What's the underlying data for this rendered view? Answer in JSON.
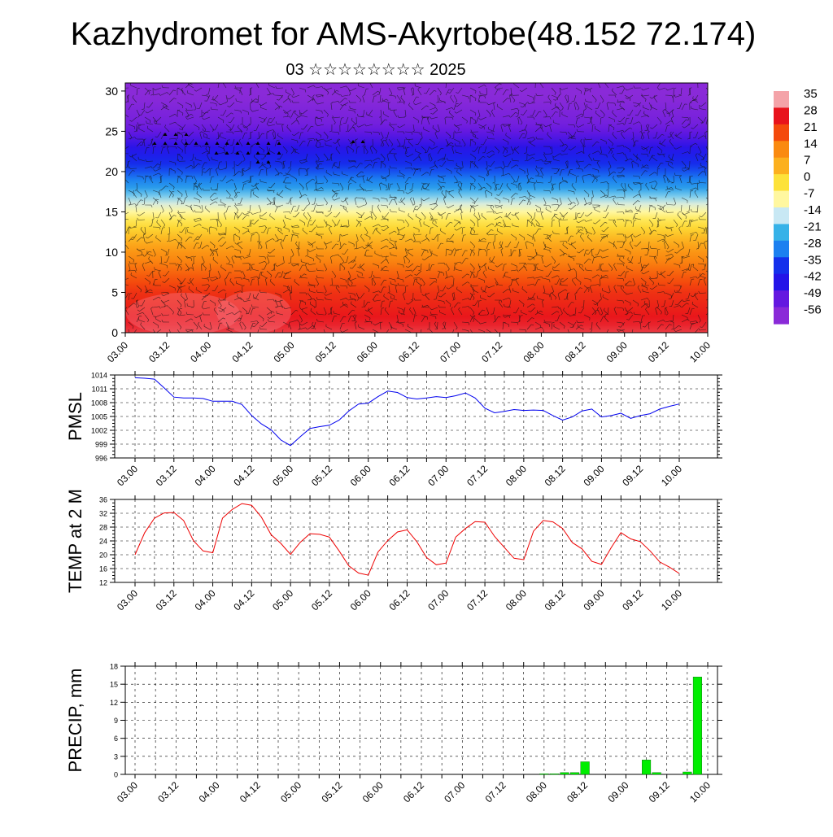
{
  "title": "Kazhydromet for AMS-Akyrtobe(48.152 72.174)",
  "subtitle": "03 ☆☆☆☆☆☆☆☆ 2025",
  "time_ticks": [
    "03.00",
    "03.12",
    "04.00",
    "04.12",
    "05.00",
    "05.12",
    "06.00",
    "06.12",
    "07.00",
    "07.12",
    "08.00",
    "08.12",
    "09.00",
    "09.12",
    "10.00"
  ],
  "chart_data": [
    {
      "type": "heatmap",
      "name": "vertical temperature cross-section with wind barbs",
      "x_ticks": [
        "03.00",
        "03.12",
        "04.00",
        "04.12",
        "05.00",
        "05.12",
        "06.00",
        "06.12",
        "07.00",
        "07.12",
        "08.00",
        "08.12",
        "09.00",
        "09.12",
        "10.00"
      ],
      "y_ticks": [
        0,
        5,
        10,
        15,
        20,
        25,
        30
      ],
      "ylim": [
        0,
        31
      ],
      "colorbar_labels": [
        "35",
        "28",
        "21",
        "14",
        "7",
        "0",
        "-7",
        "-14",
        "-21",
        "-28",
        "-35",
        "-42",
        "-49",
        "-56"
      ],
      "colorbar_colors": [
        "#f4a3a8",
        "#e8131c",
        "#f44a0c",
        "#fa8a10",
        "#fcb01e",
        "#fde23a",
        "#fff7a0",
        "#c8e8f4",
        "#36b2e8",
        "#1c80f0",
        "#1430ec",
        "#2414e8",
        "#6418e0",
        "#8a2ad8"
      ],
      "temperature_profile": [
        {
          "height": 0,
          "value": 30
        },
        {
          "height": 5,
          "value": 24
        },
        {
          "height": 10,
          "value": 12
        },
        {
          "height": 14,
          "value": -2
        },
        {
          "height": 16,
          "value": -12
        },
        {
          "height": 18,
          "value": -24
        },
        {
          "height": 21,
          "value": -36
        },
        {
          "height": 24,
          "value": -46
        },
        {
          "height": 26,
          "value": -52
        },
        {
          "height": 31,
          "value": -58
        }
      ]
    },
    {
      "type": "line",
      "ylabel": "PMSL",
      "yticks": [
        996,
        999,
        1002,
        1005,
        1008,
        1011,
        1014
      ],
      "ylim": [
        996,
        1014
      ],
      "x_ticks": [
        "03.00",
        "03.12",
        "04.00",
        "04.12",
        "05.00",
        "05.12",
        "06.00",
        "06.12",
        "07.00",
        "07.12",
        "08.00",
        "08.12",
        "09.00",
        "09.12",
        "10.00"
      ],
      "series": [
        {
          "color": "#0000ee",
          "x": [
            0,
            3,
            6,
            9,
            12,
            15,
            18,
            21,
            24,
            27,
            30,
            33,
            36,
            39,
            42,
            45,
            48,
            51,
            54,
            57,
            60,
            63,
            66,
            69,
            72,
            75,
            78,
            81,
            84,
            87,
            90,
            93,
            96,
            99,
            102,
            105,
            108,
            111,
            114,
            117,
            120,
            123,
            126,
            129,
            132,
            135,
            138,
            141,
            144,
            147,
            150,
            153,
            156,
            159,
            162,
            165,
            168
          ],
          "y": [
            1013.4,
            1013.3,
            1013.1,
            1011.2,
            1009.2,
            1009.0,
            1009.0,
            1008.9,
            1008.3,
            1008.3,
            1008.3,
            1007.6,
            1005.2,
            1003.4,
            1002.1,
            999.9,
            998.7,
            1000.6,
            1002.4,
            1002.8,
            1003.1,
            1004.2,
            1006.2,
            1007.7,
            1007.9,
            1009.3,
            1010.5,
            1010.2,
            1009.1,
            1008.8,
            1009.0,
            1009.3,
            1009.1,
            1009.5,
            1010.1,
            1009.0,
            1006.8,
            1005.8,
            1006.1,
            1006.5,
            1006.3,
            1006.4,
            1006.3,
            1005.2,
            1004.2,
            1004.9,
            1006.2,
            1006.6,
            1004.9,
            1005.2,
            1005.7,
            1004.6,
            1005.2,
            1005.6,
            1006.6,
            1007.2,
            1007.7
          ]
        }
      ]
    },
    {
      "type": "line",
      "ylabel": "TEMP at 2 M",
      "yticks": [
        12,
        16,
        20,
        24,
        28,
        32,
        36
      ],
      "ylim": [
        12,
        36
      ],
      "x_ticks": [
        "03.00",
        "03.12",
        "04.00",
        "04.12",
        "05.00",
        "05.12",
        "06.00",
        "06.12",
        "07.00",
        "07.12",
        "08.00",
        "08.12",
        "09.00",
        "09.12",
        "10.00"
      ],
      "series": [
        {
          "color": "#ee0000",
          "x": [
            0,
            3,
            6,
            9,
            12,
            15,
            18,
            21,
            24,
            27,
            30,
            33,
            36,
            39,
            42,
            45,
            48,
            51,
            54,
            57,
            60,
            63,
            66,
            69,
            72,
            75,
            78,
            81,
            84,
            87,
            90,
            93,
            96,
            99,
            102,
            105,
            108,
            111,
            114,
            117,
            120,
            123,
            126,
            129,
            132,
            135,
            138,
            141,
            144,
            147,
            150,
            153,
            156,
            159,
            162,
            165,
            168
          ],
          "y": [
            20.0,
            26.4,
            30.6,
            32.1,
            32.2,
            29.9,
            24.1,
            21.1,
            20.6,
            30.6,
            33.1,
            34.8,
            34.3,
            30.9,
            25.8,
            23.3,
            20.1,
            23.6,
            26.1,
            25.9,
            25.1,
            21.1,
            16.8,
            14.7,
            14.1,
            20.8,
            24.1,
            26.6,
            27.2,
            23.8,
            19.2,
            17.1,
            17.6,
            25.1,
            27.6,
            29.6,
            29.4,
            25.3,
            22.1,
            19.0,
            18.6,
            26.8,
            29.9,
            29.5,
            27.6,
            23.5,
            21.7,
            18.1,
            17.2,
            22.1,
            26.4,
            24.6,
            23.8,
            21.1,
            17.9,
            16.4,
            14.6
          ]
        }
      ]
    },
    {
      "type": "bar",
      "ylabel": "PRECIP, mm",
      "yticks": [
        0,
        3,
        6,
        9,
        12,
        15,
        18
      ],
      "ylim": [
        0,
        18
      ],
      "color": "#00ee00",
      "x_ticks": [
        "03.00",
        "03.12",
        "04.00",
        "04.12",
        "05.00",
        "05.12",
        "06.00",
        "06.12",
        "07.00",
        "07.12",
        "08.00",
        "08.12",
        "09.00",
        "09.12",
        "10.00"
      ],
      "bars": [
        {
          "x": 120,
          "value": 0.1
        },
        {
          "x": 123,
          "value": 0.1
        },
        {
          "x": 126,
          "value": 0.3
        },
        {
          "x": 129,
          "value": 0.3
        },
        {
          "x": 132,
          "value": 2.1
        },
        {
          "x": 150,
          "value": 2.4
        },
        {
          "x": 153,
          "value": 0.3
        },
        {
          "x": 162,
          "value": 0.4
        },
        {
          "x": 165,
          "value": 16.2
        }
      ]
    }
  ]
}
